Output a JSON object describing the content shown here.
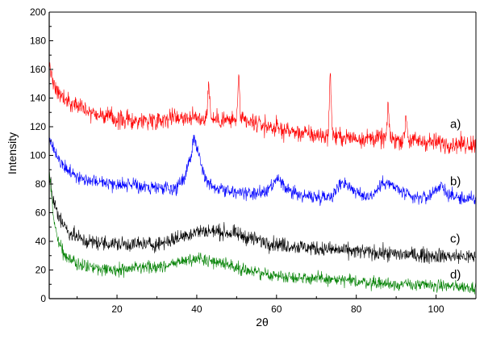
{
  "chart_data": {
    "type": "line",
    "title": "",
    "xlabel": "2θ",
    "ylabel": "Intensity",
    "xlim": [
      3,
      110
    ],
    "ylim": [
      0,
      200
    ],
    "x_ticks": [
      20,
      40,
      60,
      80,
      100
    ],
    "y_ticks": [
      0,
      20,
      40,
      60,
      80,
      100,
      120,
      140,
      160,
      180,
      200
    ],
    "grid": false,
    "legend": "none",
    "series": [
      {
        "name": "a)",
        "color": "#ff0000",
        "base": [
          [
            3,
            162
          ],
          [
            4,
            152
          ],
          [
            5,
            145
          ],
          [
            7,
            139
          ],
          [
            10,
            134
          ],
          [
            15,
            129
          ],
          [
            20,
            125
          ],
          [
            25,
            124
          ],
          [
            30,
            125
          ],
          [
            35,
            127
          ],
          [
            40,
            126
          ],
          [
            45,
            125
          ],
          [
            50,
            124
          ],
          [
            55,
            122
          ],
          [
            60,
            119
          ],
          [
            65,
            116
          ],
          [
            70,
            114
          ],
          [
            75,
            113
          ],
          [
            80,
            112
          ],
          [
            85,
            112
          ],
          [
            90,
            111
          ],
          [
            95,
            110
          ],
          [
            100,
            109
          ],
          [
            105,
            108
          ],
          [
            110,
            108
          ]
        ],
        "peaks": [
          [
            43,
            150
          ],
          [
            50.5,
            152
          ],
          [
            73.5,
            154
          ],
          [
            88,
            132
          ],
          [
            92.5,
            128
          ]
        ],
        "noise": 6
      },
      {
        "name": "b)",
        "color": "#0000ff",
        "base": [
          [
            3,
            113
          ],
          [
            5,
            98
          ],
          [
            8,
            88
          ],
          [
            12,
            83
          ],
          [
            20,
            80
          ],
          [
            30,
            77
          ],
          [
            35,
            77
          ],
          [
            37,
            85
          ],
          [
            38.5,
            100
          ],
          [
            39.3,
            112
          ],
          [
            40.3,
            104
          ],
          [
            42,
            84
          ],
          [
            45,
            77
          ],
          [
            50,
            74
          ],
          [
            55,
            73
          ],
          [
            58,
            75
          ],
          [
            60.5,
            84
          ],
          [
            62,
            77
          ],
          [
            66,
            72
          ],
          [
            70,
            71
          ],
          [
            74,
            72
          ],
          [
            76.5,
            82
          ],
          [
            78,
            79
          ],
          [
            81,
            72
          ],
          [
            84,
            72
          ],
          [
            87,
            82
          ],
          [
            90,
            77
          ],
          [
            94,
            70
          ],
          [
            98,
            71
          ],
          [
            101,
            79
          ],
          [
            103,
            73
          ],
          [
            106,
            70
          ],
          [
            110,
            69
          ]
        ],
        "peaks": [],
        "noise": 4.5
      },
      {
        "name": "c)",
        "color": "#000000",
        "base": [
          [
            3,
            86
          ],
          [
            4,
            68
          ],
          [
            6,
            54
          ],
          [
            8,
            46
          ],
          [
            12,
            40
          ],
          [
            20,
            38
          ],
          [
            30,
            38
          ],
          [
            35,
            42
          ],
          [
            40,
            47
          ],
          [
            45,
            47
          ],
          [
            50,
            45
          ],
          [
            55,
            41
          ],
          [
            60,
            38
          ],
          [
            70,
            35
          ],
          [
            80,
            33
          ],
          [
            90,
            31
          ],
          [
            100,
            30
          ],
          [
            110,
            29
          ]
        ],
        "peaks": [],
        "noise": 5
      },
      {
        "name": "d)",
        "color": "#008000",
        "base": [
          [
            3,
            92
          ],
          [
            4,
            58
          ],
          [
            5,
            42
          ],
          [
            7,
            30
          ],
          [
            10,
            24
          ],
          [
            15,
            21
          ],
          [
            20,
            20
          ],
          [
            30,
            22
          ],
          [
            35,
            25
          ],
          [
            40,
            28
          ],
          [
            45,
            26
          ],
          [
            50,
            22
          ],
          [
            55,
            18
          ],
          [
            60,
            16
          ],
          [
            70,
            14
          ],
          [
            80,
            12
          ],
          [
            90,
            10
          ],
          [
            100,
            9
          ],
          [
            110,
            8
          ]
        ],
        "peaks": [],
        "noise": 4
      }
    ],
    "series_labels": [
      {
        "text": "a)",
        "y": 122
      },
      {
        "text": "b)",
        "y": 82
      },
      {
        "text": "c)",
        "y": 42
      },
      {
        "text": "d)",
        "y": 17
      }
    ]
  }
}
